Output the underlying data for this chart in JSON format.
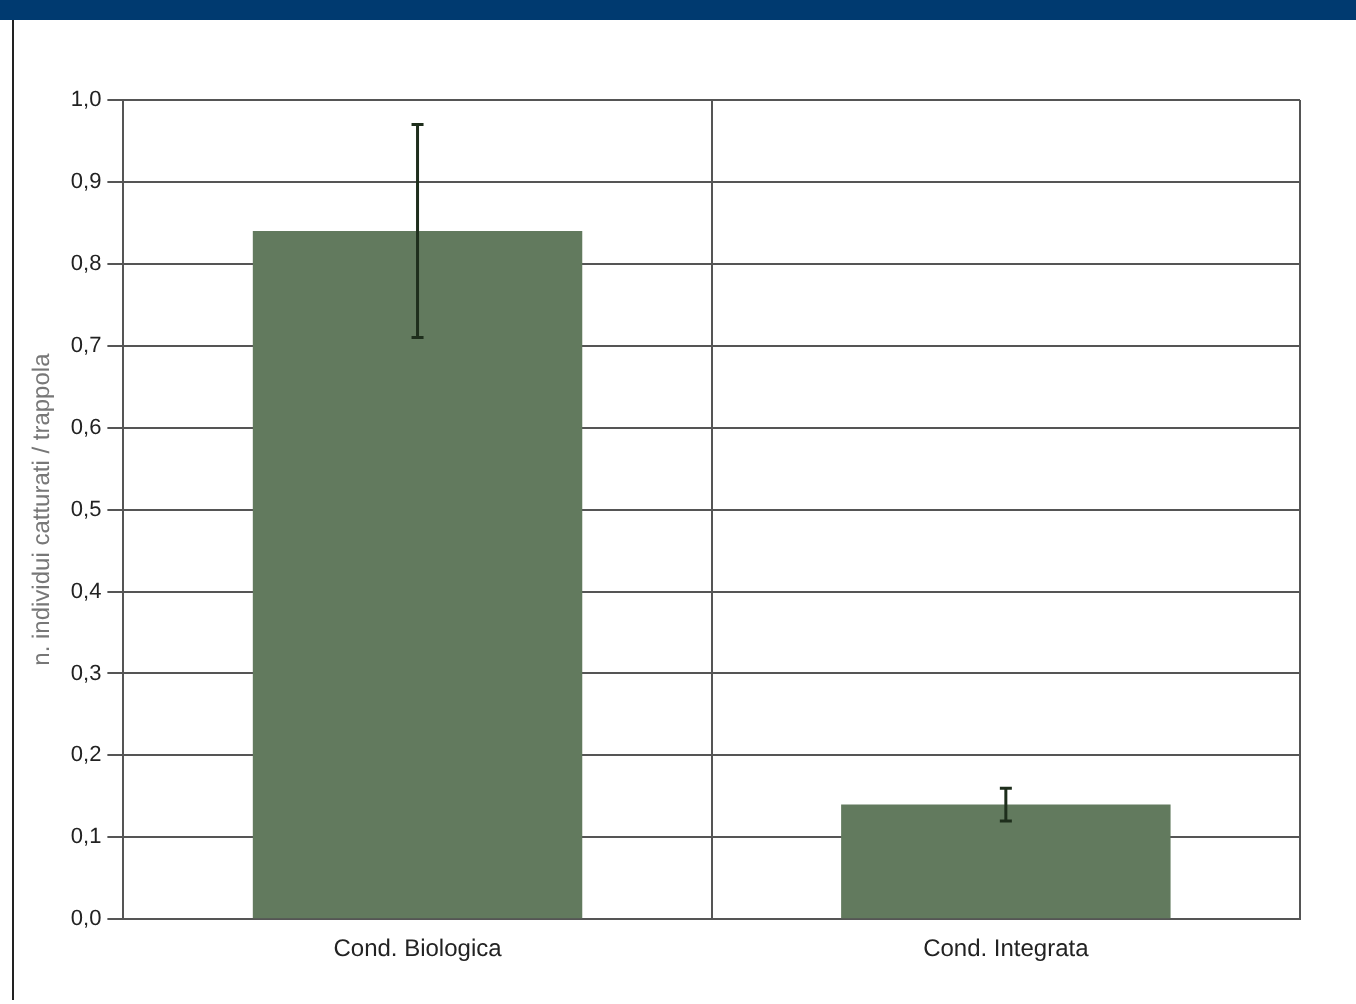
{
  "chart_data": {
    "type": "bar",
    "ylabel": "n. individui catturati / trappola",
    "categories": [
      "Cond. Biologica",
      "Cond. Integrata"
    ],
    "values": [
      0.84,
      0.14
    ],
    "errors": [
      0.13,
      0.02
    ],
    "color": "#627a5e",
    "ylim": [
      0,
      1
    ],
    "yticks": [
      {
        "value": 0,
        "label": "0,0"
      },
      {
        "value": 0.1,
        "label": "0,1"
      },
      {
        "value": 0.2,
        "label": "0,2"
      },
      {
        "value": 0.3,
        "label": "0,3"
      },
      {
        "value": 0.4,
        "label": "0,4"
      },
      {
        "value": 0.5,
        "label": "0,5"
      },
      {
        "value": 0.6,
        "label": "0,6"
      },
      {
        "value": 0.7,
        "label": "0,7"
      },
      {
        "value": 0.8,
        "label": "0,8"
      },
      {
        "value": 0.9,
        "label": "0,9"
      },
      {
        "value": 1,
        "label": "1,0"
      }
    ],
    "grid": true,
    "legend": false
  }
}
